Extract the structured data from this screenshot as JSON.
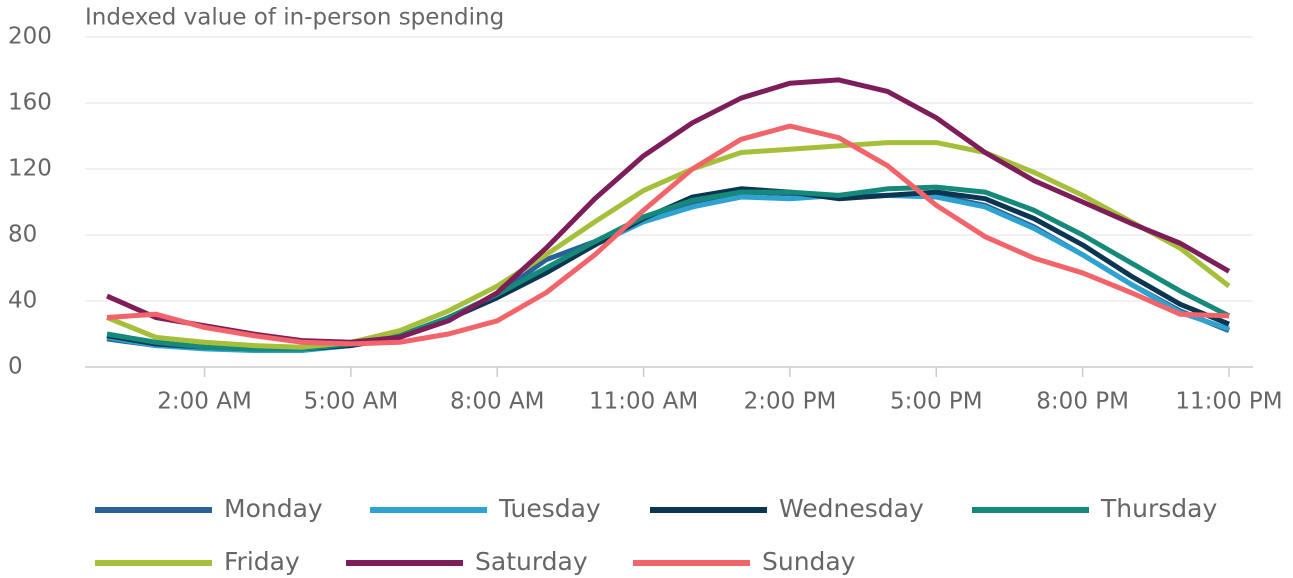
{
  "chart_data": {
    "type": "line",
    "title": "Indexed value of in-person spending",
    "categories": [
      null,
      null,
      "2:00 AM",
      null,
      null,
      "5:00 AM",
      null,
      null,
      "8:00 AM",
      null,
      null,
      "11:00 AM",
      null,
      null,
      "2:00 PM",
      null,
      null,
      "5:00 PM",
      null,
      null,
      "8:00 PM",
      null,
      null,
      "11:00 PM"
    ],
    "ylim": [
      0,
      200
    ],
    "yticks": [
      0,
      40,
      80,
      120,
      160,
      200
    ],
    "grid": true,
    "legend": "bottom",
    "series": [
      {
        "name": "Monday",
        "color": "#2a6196",
        "values": [
          17,
          13,
          12,
          11,
          11,
          13,
          18,
          30,
          44,
          65,
          76,
          90,
          100,
          106,
          105,
          103,
          104,
          104,
          98,
          85,
          68,
          50,
          34,
          22
        ]
      },
      {
        "name": "Tuesday",
        "color": "#2ea3d1",
        "values": [
          18,
          13,
          11,
          10,
          10,
          13,
          18,
          29,
          43,
          58,
          74,
          88,
          97,
          103,
          102,
          104,
          104,
          103,
          97,
          84,
          68,
          50,
          33,
          23
        ]
      },
      {
        "name": "Wednesday",
        "color": "#0b3550",
        "values": [
          19,
          14,
          12,
          11,
          11,
          13,
          18,
          29,
          42,
          57,
          74,
          90,
          103,
          108,
          106,
          102,
          104,
          106,
          102,
          90,
          74,
          55,
          38,
          26
        ]
      },
      {
        "name": "Thursday",
        "color": "#168a7a",
        "values": [
          20,
          15,
          12,
          11,
          11,
          14,
          19,
          30,
          44,
          60,
          76,
          91,
          101,
          106,
          106,
          104,
          108,
          109,
          106,
          95,
          80,
          63,
          46,
          31
        ]
      },
      {
        "name": "Friday",
        "color": "#a5bf3a",
        "values": [
          30,
          18,
          15,
          13,
          12,
          15,
          22,
          34,
          49,
          68,
          88,
          107,
          120,
          130,
          132,
          134,
          136,
          136,
          130,
          118,
          104,
          88,
          72,
          49
        ]
      },
      {
        "name": "Saturday",
        "color": "#7d1d5a",
        "values": [
          43,
          30,
          25,
          20,
          16,
          15,
          18,
          28,
          45,
          72,
          102,
          128,
          148,
          163,
          172,
          174,
          167,
          151,
          130,
          113,
          100,
          87,
          75,
          58
        ]
      },
      {
        "name": "Sunday",
        "color": "#f2636a",
        "values": [
          30,
          32,
          24,
          19,
          15,
          14,
          15,
          20,
          28,
          45,
          68,
          95,
          120,
          138,
          146,
          139,
          122,
          98,
          79,
          66,
          57,
          45,
          32,
          31
        ]
      }
    ]
  }
}
